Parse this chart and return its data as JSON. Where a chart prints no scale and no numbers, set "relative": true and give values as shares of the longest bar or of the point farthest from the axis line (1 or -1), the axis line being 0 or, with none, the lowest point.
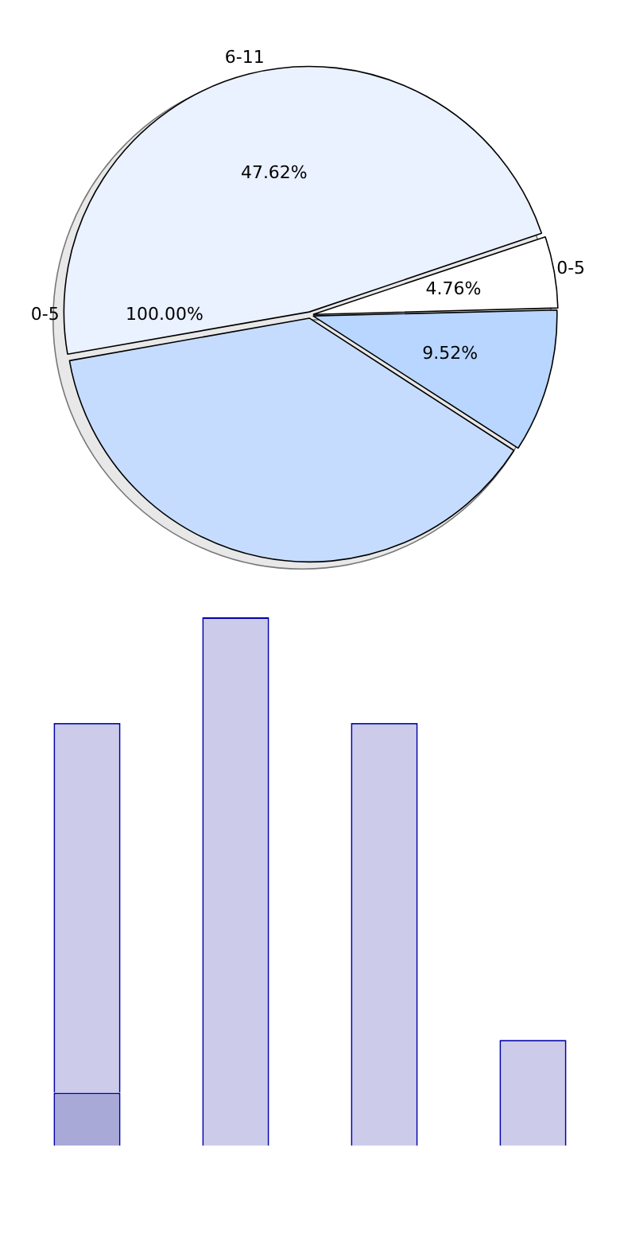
{
  "chart_data": [
    {
      "type": "pie",
      "categories": [
        "0-5"
      ],
      "values": [
        100
      ],
      "colors": [
        "#e8e8e8"
      ],
      "value_labels": [
        "100.00%"
      ]
    },
    {
      "type": "pie",
      "categories": [
        "6-11",
        "0-5",
        null,
        null
      ],
      "values": [
        47.62,
        4.76,
        9.52,
        38.1
      ],
      "colors": [
        "#eaf1ff",
        "#ffffff",
        "#b8d6ff",
        "#c6dcff"
      ],
      "value_labels": [
        "47.62%",
        "4.76%",
        "9.52%",
        null
      ]
    },
    {
      "type": "bar",
      "relative": true,
      "stacked": true,
      "categories": [
        null,
        null,
        null,
        null
      ],
      "series": [
        {
          "color": "#a9a9d8",
          "values": [
            0.1,
            null,
            null,
            null
          ]
        },
        {
          "color": "#ccccea",
          "values": [
            0.7,
            1,
            0.8,
            0.2
          ]
        }
      ]
    }
  ]
}
